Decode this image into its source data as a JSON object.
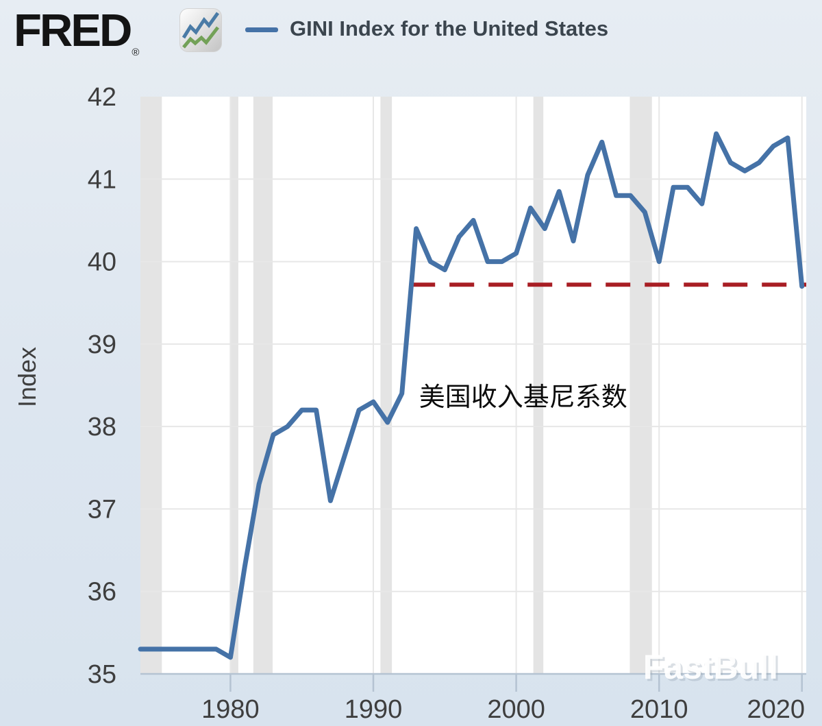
{
  "page": {
    "background_top": "#e7edf3",
    "background_bottom": "#d8e3ee"
  },
  "header": {
    "logo_text": "FRED",
    "registered_mark": "®",
    "icon": {
      "name": "fred-chart-icon",
      "line_colors": [
        "#4a7ba6",
        "#73a157"
      ]
    },
    "legend": {
      "label": "GINI Index for the United States",
      "swatch_color": "#4572a7"
    }
  },
  "watermark": {
    "text": "FastBull"
  },
  "chart_data": {
    "type": "line",
    "title": "GINI Index for the United States",
    "ylabel": "Index",
    "xlabel": "",
    "ylim": [
      35,
      42
    ],
    "xlim": [
      1973.7,
      2020.3
    ],
    "y_ticks": [
      35,
      36,
      37,
      38,
      39,
      40,
      41,
      42
    ],
    "y_gridlines": [
      36,
      37,
      38,
      39,
      40,
      41
    ],
    "x_ticks": [
      1980,
      1990,
      2000,
      2010,
      2020
    ],
    "grid": true,
    "legend_position": "top",
    "plot_bg": "#ffffff",
    "grid_color": "#e7e7e7",
    "band_color": "#e4e4e4",
    "axis_color": "#b5c3d2",
    "label_color": "#3e3e3e",
    "line_width": 7,
    "series": [
      {
        "name": "GINI Index for the United States",
        "color": "#4572a7",
        "x": [
          1974,
          1975,
          1976,
          1977,
          1978,
          1979,
          1980,
          1981,
          1982,
          1983,
          1984,
          1985,
          1986,
          1987,
          1988,
          1989,
          1990,
          1991,
          1992,
          1993,
          1994,
          1995,
          1996,
          1997,
          1998,
          1999,
          2000,
          2001,
          2002,
          2003,
          2004,
          2005,
          2006,
          2007,
          2008,
          2009,
          2010,
          2011,
          2012,
          2013,
          2014,
          2015,
          2016,
          2017,
          2018,
          2019,
          2020
        ],
        "values": [
          35.3,
          35.3,
          35.3,
          35.3,
          35.3,
          35.3,
          35.2,
          36.3,
          37.3,
          37.9,
          38.0,
          38.2,
          38.2,
          37.1,
          37.65,
          38.2,
          38.3,
          38.05,
          38.4,
          40.4,
          40.0,
          39.9,
          40.3,
          40.5,
          40.0,
          40.0,
          40.1,
          40.65,
          40.4,
          40.85,
          40.25,
          41.05,
          41.45,
          40.8,
          40.8,
          40.6,
          40.0,
          40.9,
          40.9,
          40.7,
          41.55,
          41.2,
          41.1,
          41.2,
          41.4,
          41.5,
          39.7
        ]
      }
    ],
    "reference_line": {
      "value": 39.72,
      "x_start": 1992.6,
      "x_end": 2020.3,
      "color": "#a81e24",
      "style": "dashed"
    },
    "recession_bands": [
      [
        1973.7,
        1975.2
      ],
      [
        1980.0,
        1980.55
      ],
      [
        1981.6,
        1982.95
      ],
      [
        1990.5,
        1991.3
      ],
      [
        2001.2,
        2001.9
      ],
      [
        2007.95,
        2009.5
      ]
    ],
    "annotation": {
      "text": "美国收入基尼系数",
      "x_year": 1993.2,
      "y_value": 38.25
    }
  }
}
